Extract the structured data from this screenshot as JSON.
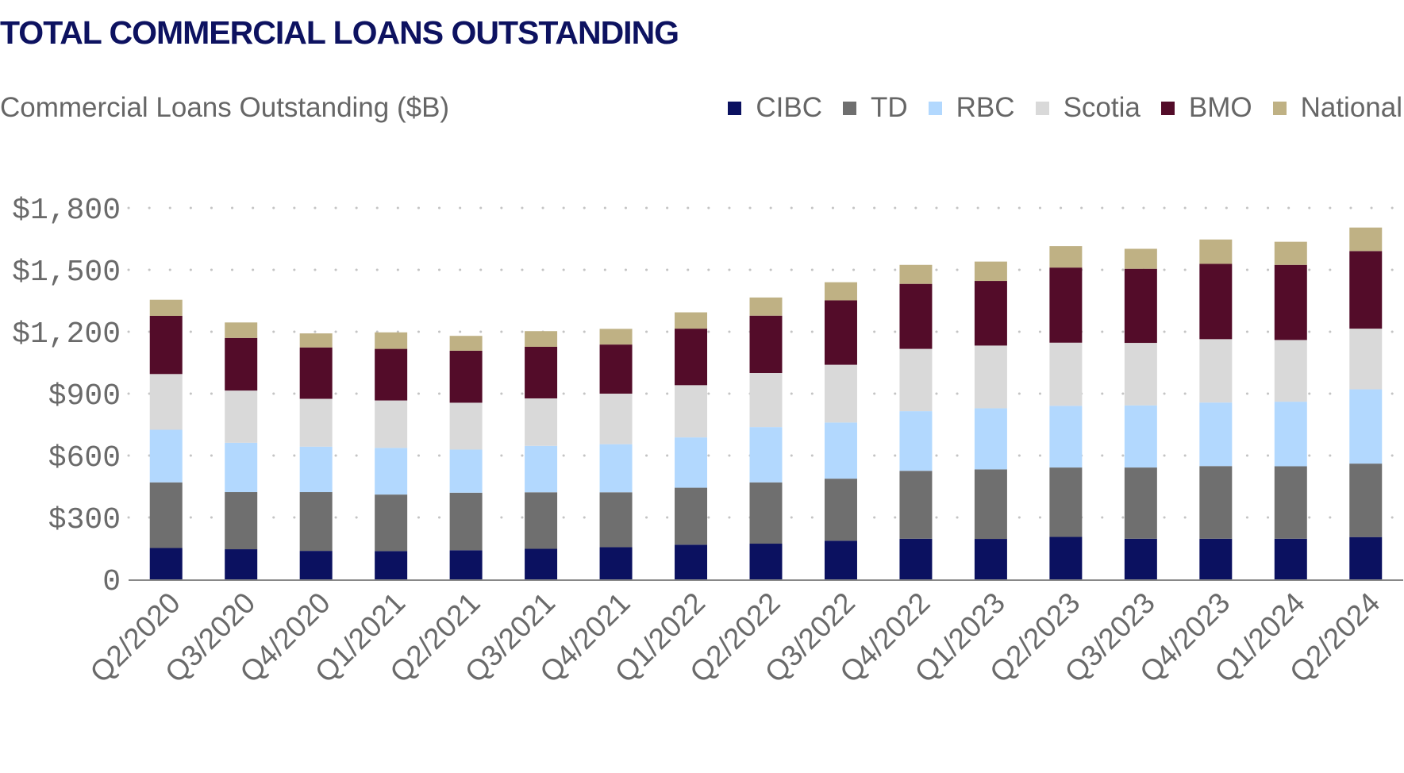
{
  "title": "TOTAL COMMERCIAL LOANS OUTSTANDING",
  "chart_data": {
    "type": "bar",
    "stacked": true,
    "title": "Commercial Loans Outstanding ($B)",
    "xlabel": "",
    "ylabel": "",
    "ylim": [
      0,
      1800
    ],
    "grid": true,
    "legend_position": "top-right",
    "y_ticks": [
      0,
      300,
      600,
      900,
      1200,
      1500,
      1800
    ],
    "y_tick_labels": [
      "0",
      "$300",
      "$600",
      "$900",
      "$1,200",
      "$1,500",
      "$1,800"
    ],
    "categories": [
      "Q2/2020",
      "Q3/2020",
      "Q4/2020",
      "Q1/2021",
      "Q2/2021",
      "Q3/2021",
      "Q4/2021",
      "Q1/2022",
      "Q2/2022",
      "Q3/2022",
      "Q4/2022",
      "Q1/2023",
      "Q2/2023",
      "Q3/2023",
      "Q4/2023",
      "Q1/2024",
      "Q2/2024"
    ],
    "series": [
      {
        "name": "CIBC",
        "color": "#0b1160",
        "values": [
          152,
          146,
          138,
          137,
          141,
          148,
          156,
          168,
          173,
          187,
          197,
          196,
          206,
          197,
          197,
          197,
          205
        ]
      },
      {
        "name": "TD",
        "color": "#6f6f6f",
        "values": [
          318,
          277,
          285,
          274,
          279,
          274,
          266,
          276,
          297,
          301,
          329,
          337,
          336,
          345,
          352,
          351,
          356
        ]
      },
      {
        "name": "RBC",
        "color": "#b2d8fe",
        "values": [
          255,
          239,
          220,
          226,
          209,
          225,
          233,
          244,
          268,
          272,
          289,
          296,
          299,
          301,
          308,
          313,
          360
        ]
      },
      {
        "name": "Scotia",
        "color": "#d9d9d9",
        "values": [
          270,
          253,
          232,
          230,
          227,
          230,
          245,
          253,
          262,
          280,
          302,
          304,
          306,
          303,
          307,
          299,
          294
        ]
      },
      {
        "name": "BMO",
        "color": "#530c29",
        "values": [
          282,
          255,
          249,
          250,
          252,
          250,
          238,
          274,
          278,
          312,
          315,
          313,
          364,
          359,
          365,
          364,
          376
        ]
      },
      {
        "name": "National",
        "color": "#bfb184",
        "values": [
          78,
          75,
          68,
          80,
          72,
          76,
          76,
          79,
          88,
          88,
          92,
          94,
          104,
          97,
          118,
          112,
          114
        ]
      }
    ]
  }
}
